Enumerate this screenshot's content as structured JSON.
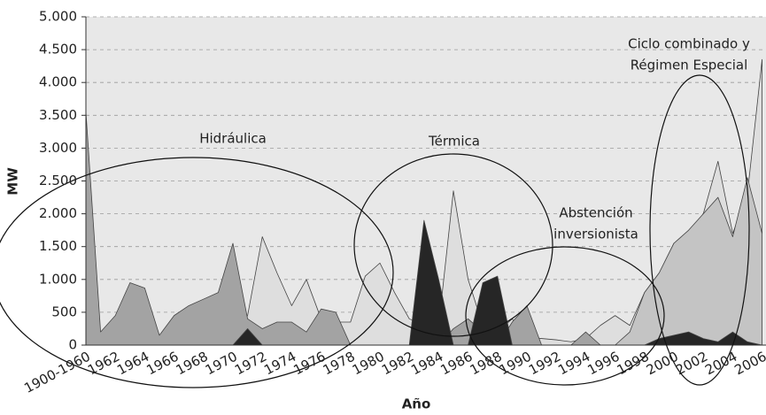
{
  "chart_data": {
    "type": "area",
    "y_label": "MW",
    "x_label": "Año",
    "categories": [
      "1900-1960",
      null,
      "1962",
      null,
      "1964",
      null,
      "1966",
      null,
      "1968",
      null,
      "1970",
      null,
      "1972",
      null,
      "1974",
      null,
      "1976",
      null,
      "1978",
      null,
      "1980",
      null,
      "1982",
      null,
      "1984",
      null,
      "1986",
      null,
      "1988",
      null,
      "1990",
      null,
      "1992",
      null,
      "1994",
      null,
      "1996",
      null,
      "1998",
      null,
      "2000",
      null,
      "2002",
      null,
      "2004",
      null,
      "2006"
    ],
    "ylim": [
      0,
      5000
    ],
    "yticks": [
      0,
      500,
      {
        "value": 1000,
        "label": "1.000"
      },
      {
        "value": 1500,
        "label": "1.500"
      },
      {
        "value": 2000,
        "label": "2.000"
      },
      {
        "value": 2500,
        "label": "2.500"
      },
      {
        "value": 3000,
        "label": "3.000"
      },
      {
        "value": 3500,
        "label": "3.500"
      },
      {
        "value": 4000,
        "label": "4.000"
      },
      {
        "value": 4500,
        "label": "4.500"
      },
      {
        "value": 5000,
        "label": "5.000"
      }
    ],
    "grid": true,
    "series": [
      {
        "color": "#dedede",
        "values": [
          0,
          0,
          0,
          0,
          0,
          0,
          0,
          0,
          0,
          0,
          0,
          450,
          1650,
          1100,
          600,
          1000,
          400,
          350,
          350,
          1050,
          1250,
          800,
          400,
          300,
          300,
          2350,
          1000,
          300,
          200,
          400,
          100,
          100,
          80,
          50,
          100,
          300,
          450,
          300,
          800,
          1100,
          1550,
          1700,
          2000,
          2800,
          1700,
          2300,
          4350
        ]
      },
      {
        "color": "#c4c4c4",
        "values": [
          0,
          0,
          0,
          0,
          0,
          0,
          0,
          0,
          0,
          0,
          0,
          0,
          0,
          0,
          0,
          0,
          0,
          0,
          0,
          0,
          0,
          0,
          0,
          0,
          0,
          0,
          0,
          0,
          0,
          0,
          0,
          0,
          0,
          0,
          0,
          0,
          0,
          200,
          800,
          1100,
          1550,
          1750,
          2000,
          2250,
          1650,
          2550,
          1700
        ]
      },
      {
        "color": "#a3a3a3",
        "values": [
          3550,
          200,
          450,
          950,
          870,
          150,
          450,
          600,
          700,
          800,
          1550,
          400,
          250,
          350,
          350,
          200,
          550,
          500,
          0,
          0,
          0,
          0,
          0,
          150,
          0,
          250,
          400,
          200,
          0,
          350,
          600,
          0,
          0,
          0,
          200,
          0,
          0,
          0,
          0,
          0,
          0,
          0,
          0,
          0,
          0,
          0,
          0
        ]
      },
      {
        "color": "#262626",
        "values": [
          0,
          0,
          0,
          0,
          0,
          0,
          0,
          0,
          0,
          0,
          0,
          250,
          0,
          0,
          0,
          0,
          0,
          0,
          0,
          0,
          0,
          0,
          0,
          1900,
          1000,
          0,
          0,
          950,
          1050,
          0,
          0,
          0,
          0,
          0,
          0,
          0,
          0,
          0,
          0,
          100,
          150,
          200,
          100,
          50,
          200,
          50,
          0
        ]
      }
    ],
    "annotations": [
      {
        "lines": [
          "Hidráulica"
        ]
      },
      {
        "lines": [
          "Térmica"
        ]
      },
      {
        "lines": [
          "Abstención",
          "inversionista"
        ]
      },
      {
        "lines": [
          "Ciclo combinado y",
          "Régimen Especial"
        ]
      }
    ]
  }
}
